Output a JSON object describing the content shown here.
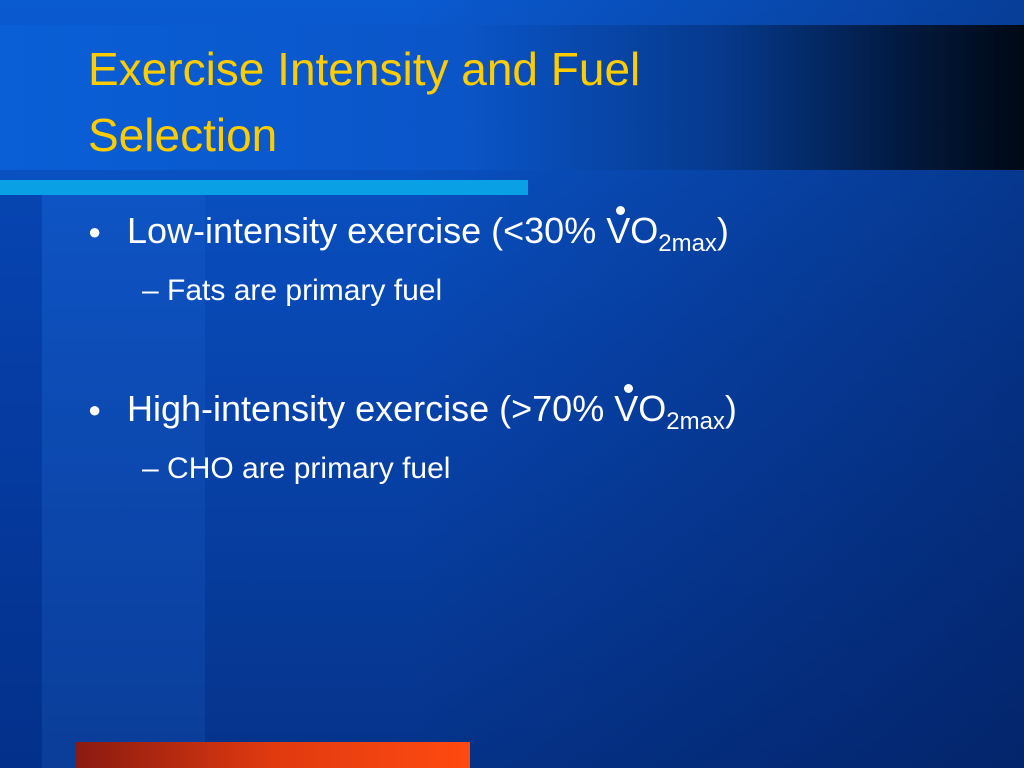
{
  "slide": {
    "title_lines": [
      "Exercise Intensity and Fuel",
      "Selection"
    ],
    "bullets": [
      {
        "text": "Low-intensity exercise (<30% ",
        "symbol": "VO",
        "subscript": "2max",
        "suffix": ")",
        "sub": [
          "Fats are primary fuel"
        ]
      },
      {
        "text": "High-intensity exercise (>70% ",
        "symbol": "VO",
        "subscript": "2max",
        "suffix": ")",
        "sub": [
          "CHO are primary fuel"
        ]
      }
    ]
  }
}
